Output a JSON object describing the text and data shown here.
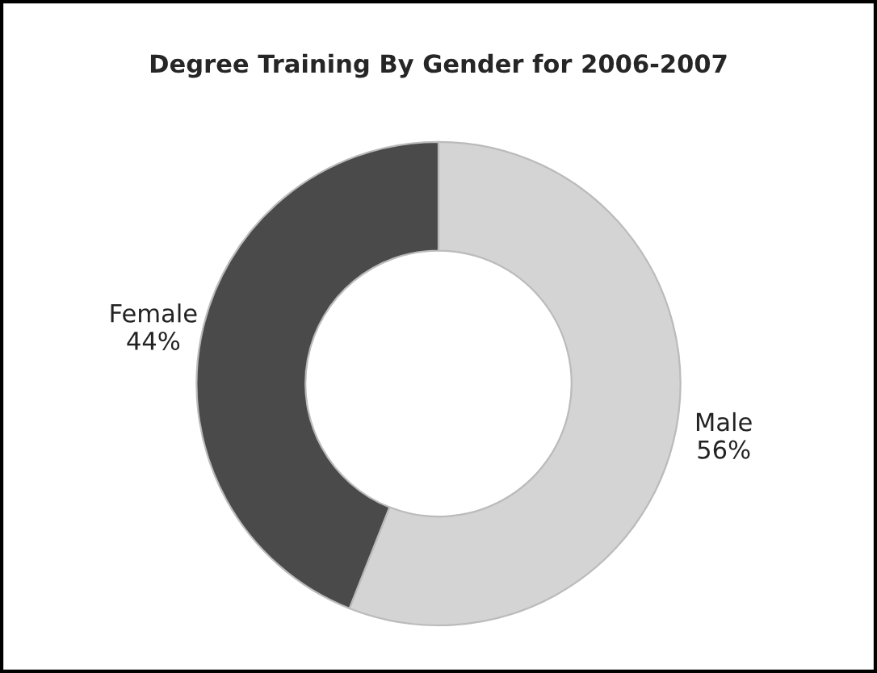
{
  "chart_data": {
    "type": "donut",
    "title": "Degree Training By Gender for 2006-2007",
    "categories": [
      "Male",
      "Female"
    ],
    "values": [
      56,
      44
    ],
    "colors": [
      "#d4d4d4",
      "#4a4a4a"
    ],
    "value_labels": [
      "56%",
      "44%"
    ],
    "legend": false
  }
}
